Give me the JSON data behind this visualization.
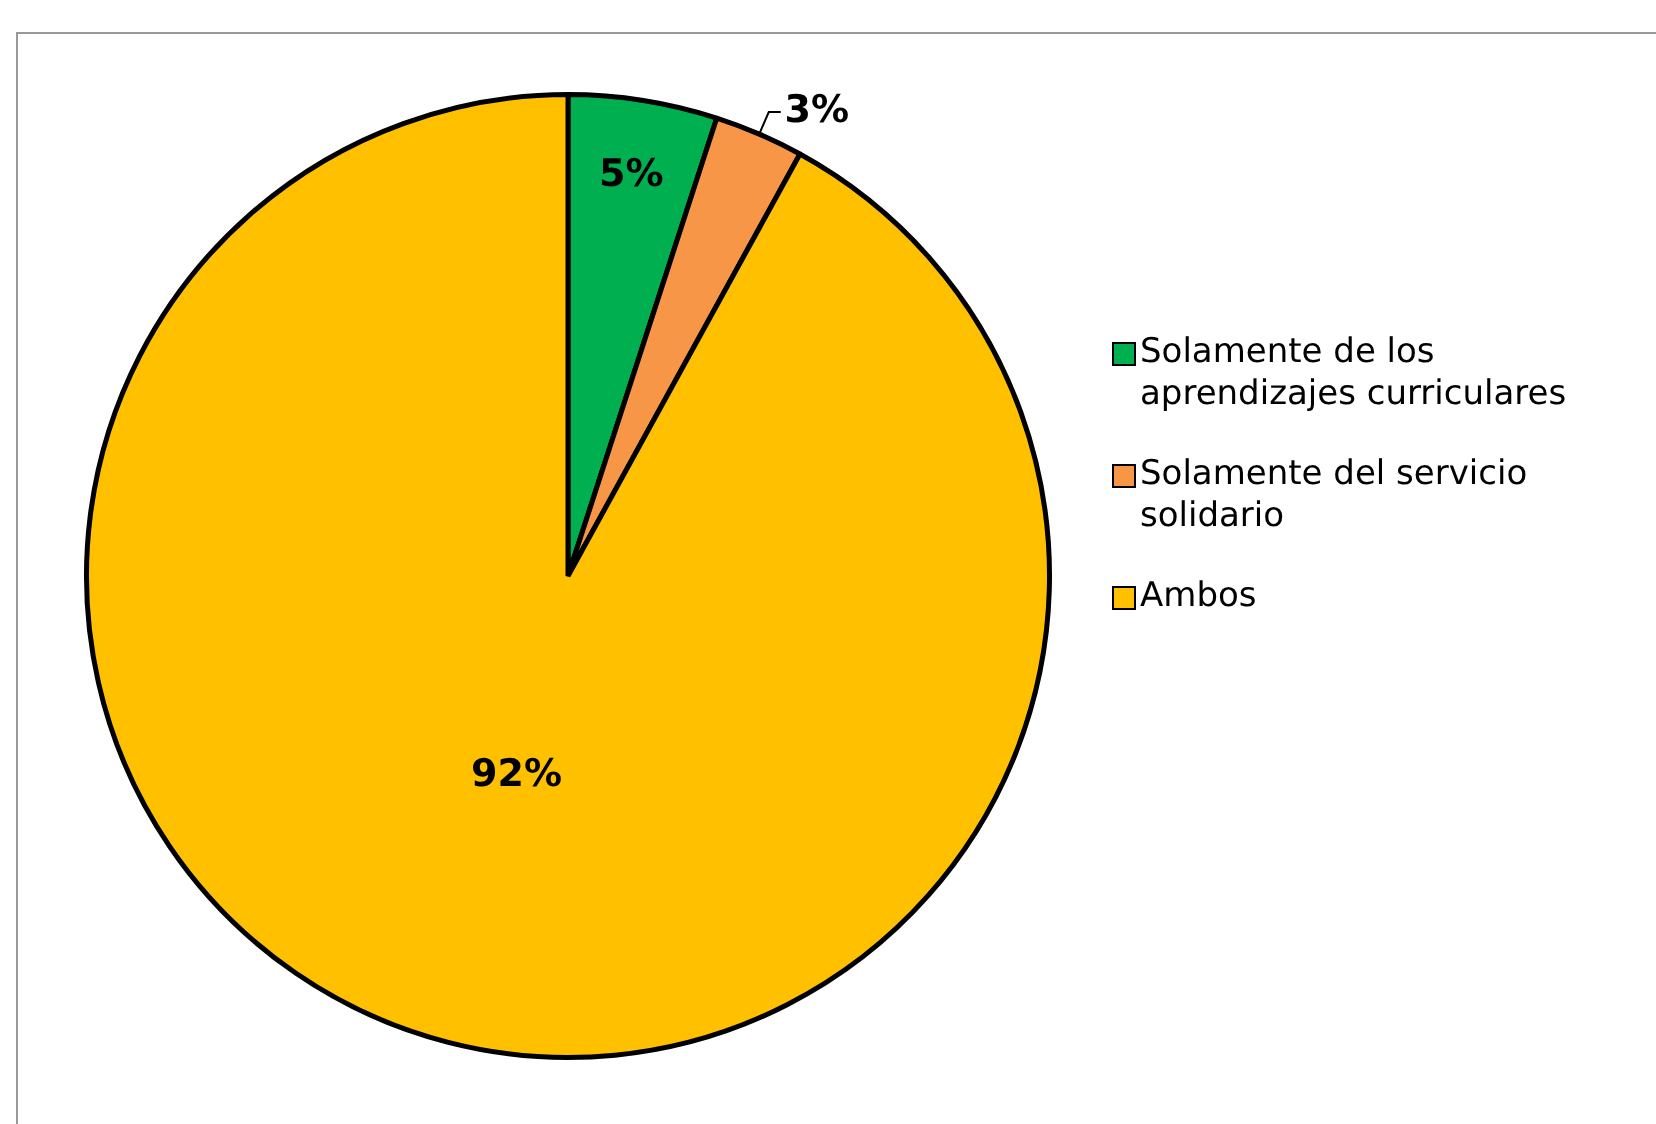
{
  "chart_data": {
    "type": "pie",
    "categories": [
      "Solamente de los aprendizajes curriculares",
      "Solamente del servicio solidario",
      "Ambos"
    ],
    "values": [
      5,
      3,
      92
    ],
    "colors": [
      "#00b050",
      "#f79646",
      "#ffc000"
    ],
    "value_labels": [
      "5%",
      "3%",
      "92%"
    ],
    "legend": "right"
  }
}
